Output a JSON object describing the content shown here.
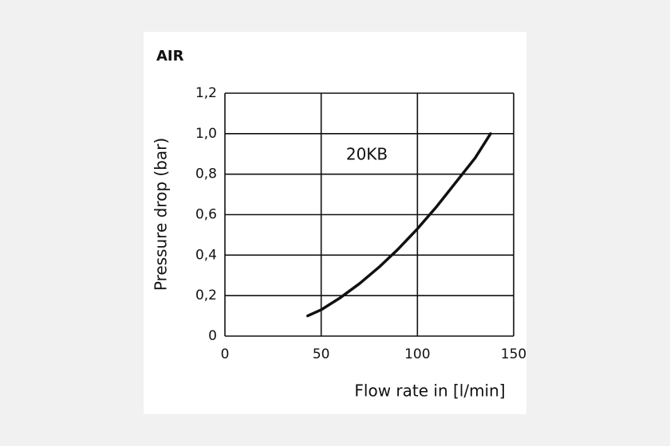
{
  "chart_data": {
    "type": "line",
    "title": "AIR",
    "annotation": "20KB",
    "xlabel": "Flow rate in [l/min]",
    "ylabel": "Pressure drop (bar)",
    "x": [
      43,
      50,
      60,
      70,
      80,
      90,
      100,
      110,
      120,
      130,
      138
    ],
    "series": [
      {
        "name": "20KB",
        "color": "#111111",
        "values": [
          0.1,
          0.13,
          0.19,
          0.26,
          0.34,
          0.43,
          0.53,
          0.64,
          0.76,
          0.88,
          1.0
        ]
      }
    ],
    "xlim": [
      0,
      150
    ],
    "xticks": [
      0,
      50,
      100,
      150
    ],
    "ylim": [
      0,
      1.2
    ],
    "yticks": [
      0,
      {
        "value": 0.2,
        "label": "0,2"
      },
      {
        "value": 0.4,
        "label": "0,4"
      },
      {
        "value": 0.6,
        "label": "0,6"
      },
      {
        "value": 0.8,
        "label": "0,8"
      },
      {
        "value": 1.0,
        "label": "1,0"
      },
      {
        "value": 1.2,
        "label": "1,2"
      }
    ],
    "grid": true
  }
}
